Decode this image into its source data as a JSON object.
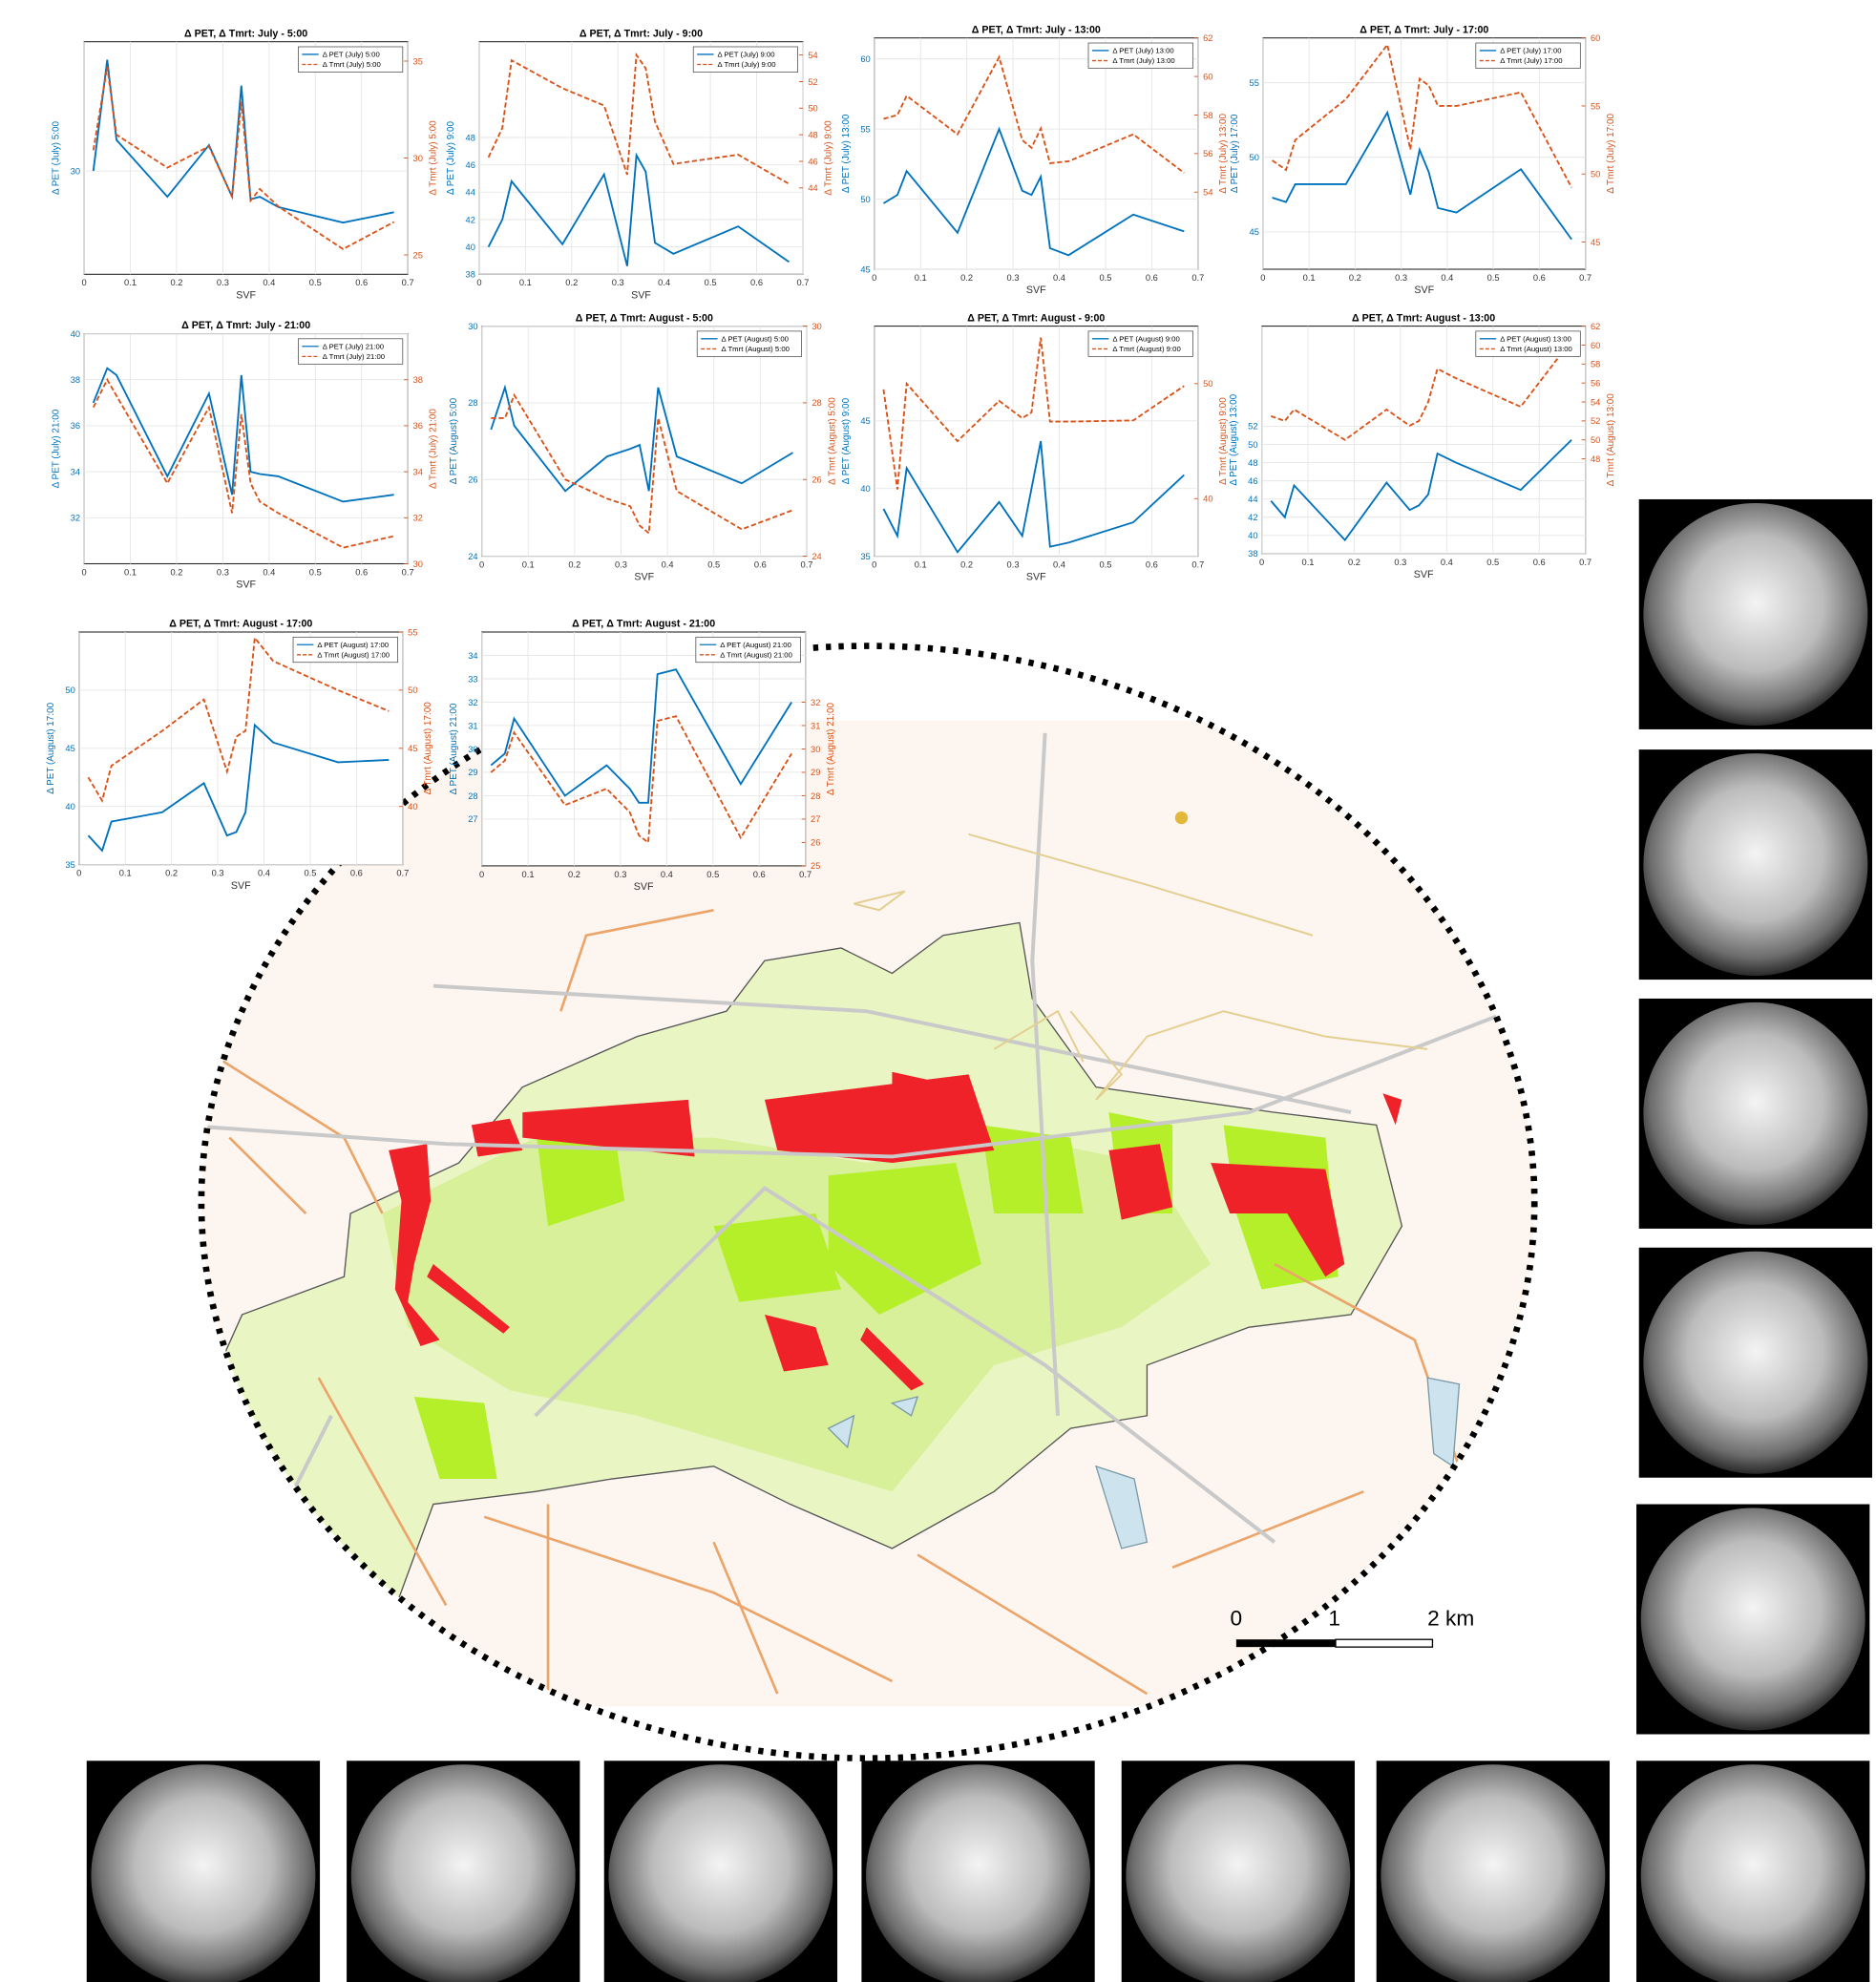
{
  "chart_data": [
    {
      "type": "line",
      "title": "Δ PET, Δ Tmrt: July - 5:00",
      "xlabel": "SVF",
      "ylabel": "Δ PET (July) 5:00",
      "y2label": "Δ Tmrt (July) 5:00",
      "x": [
        0.02,
        0.05,
        0.07,
        0.18,
        0.27,
        0.32,
        0.34,
        0.36,
        0.38,
        0.42,
        0.56,
        0.67
      ],
      "xlim": [
        0,
        0.7
      ],
      "xticks": [
        0,
        0.1,
        0.2,
        0.3,
        0.4,
        0.5,
        0.6,
        0.7
      ],
      "ylim": [
        26,
        35
      ],
      "yticks": [
        30
      ],
      "y2lim": [
        24,
        36
      ],
      "y2ticks": [
        25,
        30,
        35
      ],
      "grid": true,
      "series": [
        {
          "name": "Δ PET (July) 5:00",
          "color": "#0072bd",
          "values": [
            30,
            34.3,
            31.2,
            29,
            31,
            29,
            33.3,
            28.9,
            29,
            28.6,
            28,
            28.4
          ]
        },
        {
          "name": "Δ Tmrt (July) 5:00",
          "color": "#d95319",
          "axis": "y2",
          "values": [
            30.4,
            34.7,
            31.2,
            29.5,
            30.6,
            28,
            32.9,
            27.8,
            28.4,
            27.5,
            25.3,
            26.7
          ]
        }
      ]
    },
    {
      "type": "line",
      "title": "Δ PET, Δ Tmrt: July - 9:00",
      "xlabel": "SVF",
      "ylabel": "Δ PET (July) 9:00",
      "y2label": "Δ Tmrt (July) 9:00",
      "x": [
        0.02,
        0.05,
        0.07,
        0.18,
        0.27,
        0.32,
        0.34,
        0.36,
        0.38,
        0.42,
        0.56,
        0.67
      ],
      "xlim": [
        0,
        0.7
      ],
      "xticks": [
        0,
        0.1,
        0.2,
        0.3,
        0.4,
        0.5,
        0.6,
        0.7
      ],
      "ylim": [
        38,
        55
      ],
      "yticks": [
        38,
        40,
        42,
        44,
        46,
        48
      ],
      "y2lim": [
        37.5,
        55
      ],
      "y2ticks": [
        44,
        46,
        48,
        50,
        52,
        54
      ],
      "grid": true,
      "series": [
        {
          "name": "Δ PET (July) 9:00",
          "color": "#0072bd",
          "values": [
            40,
            42,
            44.8,
            40.2,
            45.3,
            38.6,
            46.7,
            45.5,
            40.3,
            39.5,
            41.5,
            38.9
          ]
        },
        {
          "name": "Δ Tmrt (July) 9:00",
          "color": "#d95319",
          "axis": "y2",
          "values": [
            46.3,
            48.5,
            53.6,
            51.5,
            50.2,
            45,
            54,
            53,
            49,
            45.8,
            46.5,
            44.3
          ]
        }
      ]
    },
    {
      "type": "line",
      "title": "Δ PET, Δ Tmrt: July - 13:00",
      "xlabel": "SVF",
      "ylabel": "Δ PET (July) 13:00",
      "y2label": "Δ Tmrt (July) 13:00",
      "x": [
        0.02,
        0.05,
        0.07,
        0.18,
        0.27,
        0.32,
        0.34,
        0.36,
        0.38,
        0.42,
        0.56,
        0.67
      ],
      "xlim": [
        0,
        0.7
      ],
      "xticks": [
        0,
        0.1,
        0.2,
        0.3,
        0.4,
        0.5,
        0.6,
        0.7
      ],
      "ylim": [
        45,
        61.5
      ],
      "yticks": [
        45,
        50,
        55,
        60
      ],
      "y2lim": [
        50,
        62
      ],
      "y2ticks": [
        54,
        56,
        58,
        60,
        62
      ],
      "grid": true,
      "series": [
        {
          "name": "Δ PET (July) 13:00",
          "color": "#0072bd",
          "values": [
            49.7,
            50.3,
            52,
            47.6,
            55,
            50.6,
            50.3,
            51.6,
            46.5,
            46,
            48.9,
            47.7
          ]
        },
        {
          "name": "Δ Tmrt (July) 13:00",
          "color": "#d95319",
          "axis": "y2",
          "values": [
            57.8,
            58,
            59,
            57,
            61,
            56.7,
            56.3,
            57.3,
            55.5,
            55.6,
            57,
            55
          ]
        }
      ]
    },
    {
      "type": "line",
      "title": "Δ PET, Δ Tmrt: July - 17:00",
      "xlabel": "SVF",
      "ylabel": "Δ PET (July) 17:00",
      "y2label": "Δ Tmrt (July) 17:00",
      "x": [
        0.02,
        0.05,
        0.07,
        0.18,
        0.27,
        0.32,
        0.34,
        0.36,
        0.38,
        0.42,
        0.56,
        0.67
      ],
      "xlim": [
        0,
        0.7
      ],
      "xticks": [
        0,
        0.1,
        0.2,
        0.3,
        0.4,
        0.5,
        0.6,
        0.7
      ],
      "ylim": [
        42.5,
        58
      ],
      "yticks": [
        45,
        50,
        55
      ],
      "y2lim": [
        43,
        60
      ],
      "y2ticks": [
        45,
        50,
        55,
        60
      ],
      "grid": true,
      "series": [
        {
          "name": "Δ PET (July) 17:00",
          "color": "#0072bd",
          "values": [
            47.3,
            47,
            48.2,
            48.2,
            53,
            47.5,
            50.5,
            49,
            46.6,
            46.3,
            49.2,
            44.5
          ]
        },
        {
          "name": "Δ Tmrt (July) 17:00",
          "color": "#d95319",
          "axis": "y2",
          "values": [
            51,
            50.3,
            52.5,
            55.5,
            59.5,
            51.8,
            57,
            56.5,
            55,
            55,
            56,
            49
          ]
        }
      ]
    },
    {
      "type": "line",
      "title": "Δ PET, Δ Tmrt: July - 21:00",
      "xlabel": "SVF",
      "ylabel": "Δ PET (July) 21:00",
      "y2label": "Δ Tmrt (July) 21:00",
      "x": [
        0.02,
        0.05,
        0.07,
        0.18,
        0.27,
        0.32,
        0.34,
        0.36,
        0.38,
        0.42,
        0.56,
        0.67
      ],
      "xlim": [
        0,
        0.7
      ],
      "xticks": [
        0,
        0.1,
        0.2,
        0.3,
        0.4,
        0.5,
        0.6,
        0.7
      ],
      "ylim": [
        30,
        40
      ],
      "yticks": [
        32,
        34,
        36,
        38,
        40
      ],
      "y2lim": [
        30,
        40
      ],
      "y2ticks": [
        30,
        32,
        34,
        36,
        38
      ],
      "grid": true,
      "series": [
        {
          "name": "Δ PET (July) 21:00",
          "color": "#0072bd",
          "values": [
            37,
            38.5,
            38.2,
            33.8,
            37.4,
            33,
            38.2,
            34,
            33.9,
            33.8,
            32.7,
            33
          ]
        },
        {
          "name": "Δ Tmrt (July) 21:00",
          "color": "#d95319",
          "axis": "y2",
          "values": [
            36.8,
            38,
            37.3,
            33.5,
            36.8,
            32.2,
            36.5,
            33.5,
            32.7,
            32.2,
            30.7,
            31.2
          ]
        }
      ]
    },
    {
      "type": "line",
      "title": "Δ PET, Δ Tmrt: August - 5:00",
      "xlabel": "SVF",
      "ylabel": "Δ PET (August) 5:00",
      "y2label": "Δ Tmrt (August) 5:00",
      "x": [
        0.02,
        0.05,
        0.07,
        0.18,
        0.27,
        0.32,
        0.34,
        0.36,
        0.38,
        0.42,
        0.56,
        0.67
      ],
      "xlim": [
        0,
        0.7
      ],
      "xticks": [
        0,
        0.1,
        0.2,
        0.3,
        0.4,
        0.5,
        0.6,
        0.7
      ],
      "ylim": [
        24,
        30
      ],
      "yticks": [
        24,
        26,
        28,
        30
      ],
      "y2lim": [
        24,
        30
      ],
      "y2ticks": [
        24,
        26,
        28,
        30
      ],
      "grid": true,
      "series": [
        {
          "name": "Δ PET (August) 5:00",
          "color": "#0072bd",
          "values": [
            27.3,
            28.4,
            27.4,
            25.7,
            26.6,
            26.8,
            26.9,
            25.7,
            28.4,
            26.6,
            25.9,
            26.7
          ]
        },
        {
          "name": "Δ Tmrt (August) 5:00",
          "color": "#d95319",
          "axis": "y2",
          "values": [
            27.6,
            27.6,
            28.2,
            26,
            25.5,
            25.3,
            24.8,
            24.6,
            27.6,
            25.7,
            24.7,
            25.2
          ]
        }
      ]
    },
    {
      "type": "line",
      "title": "Δ PET, Δ Tmrt: August - 9:00",
      "xlabel": "SVF",
      "ylabel": "Δ PET (August) 9:00",
      "y2label": "Δ Tmrt (August) 9:00",
      "x": [
        0.02,
        0.05,
        0.07,
        0.18,
        0.27,
        0.32,
        0.34,
        0.36,
        0.38,
        0.42,
        0.56,
        0.67
      ],
      "xlim": [
        0,
        0.7
      ],
      "xticks": [
        0,
        0.1,
        0.2,
        0.3,
        0.4,
        0.5,
        0.6,
        0.7
      ],
      "ylim": [
        35,
        52
      ],
      "yticks": [
        35,
        40,
        45
      ],
      "y2lim": [
        35,
        55
      ],
      "y2ticks": [
        40,
        50
      ],
      "grid": true,
      "series": [
        {
          "name": "Δ PET (August) 9:00",
          "color": "#0072bd",
          "values": [
            38.5,
            36.5,
            41.5,
            35.3,
            39,
            36.5,
            40,
            43.5,
            35.7,
            36,
            37.5,
            41
          ]
        },
        {
          "name": "Δ Tmrt (August) 9:00",
          "color": "#d95319",
          "axis": "y2",
          "values": [
            49.5,
            40.8,
            50,
            45,
            48.5,
            47,
            47.5,
            54,
            46.7,
            46.7,
            46.8,
            49.8
          ]
        }
      ]
    },
    {
      "type": "line",
      "title": "Δ PET, Δ Tmrt: August - 13:00",
      "xlabel": "SVF",
      "ylabel": "Δ PET (August) 13:00",
      "y2label": "Δ Tmrt (August) 13:00",
      "x": [
        0.02,
        0.05,
        0.07,
        0.18,
        0.27,
        0.32,
        0.34,
        0.36,
        0.38,
        0.42,
        0.56,
        0.67
      ],
      "xlim": [
        0,
        0.7
      ],
      "xticks": [
        0,
        0.1,
        0.2,
        0.3,
        0.4,
        0.5,
        0.6,
        0.7
      ],
      "ylim": [
        38,
        63
      ],
      "yticks": [
        38,
        40,
        42,
        44,
        46,
        48,
        50,
        52
      ],
      "y2lim": [
        38,
        62
      ],
      "y2ticks": [
        48,
        50,
        52,
        54,
        56,
        58,
        60,
        62
      ],
      "grid": true,
      "series": [
        {
          "name": "Δ PET (August) 13:00",
          "color": "#0072bd",
          "values": [
            43.8,
            42,
            45.5,
            39.5,
            45.8,
            42.8,
            43.3,
            44.5,
            49,
            48,
            45,
            50.5
          ]
        },
        {
          "name": "Δ Tmrt (August) 13:00",
          "color": "#d95319",
          "axis": "y2",
          "values": [
            52.5,
            52,
            53.2,
            50,
            53.2,
            51.5,
            52,
            54,
            57.5,
            56.5,
            53.5,
            60.5
          ]
        }
      ]
    },
    {
      "type": "line",
      "title": "Δ PET, Δ Tmrt: August - 17:00",
      "xlabel": "SVF",
      "ylabel": "Δ PET (August) 17:00",
      "y2label": "Δ Tmrt (August) 17:00",
      "x": [
        0.02,
        0.05,
        0.07,
        0.18,
        0.27,
        0.32,
        0.34,
        0.36,
        0.38,
        0.42,
        0.56,
        0.67
      ],
      "xlim": [
        0,
        0.7
      ],
      "xticks": [
        0,
        0.1,
        0.2,
        0.3,
        0.4,
        0.5,
        0.6,
        0.7
      ],
      "ylim": [
        35,
        55
      ],
      "yticks": [
        35,
        40,
        45,
        50
      ],
      "y2lim": [
        35,
        55
      ],
      "y2ticks": [
        40,
        45,
        50,
        55
      ],
      "grid": true,
      "series": [
        {
          "name": "Δ PET (August) 17:00",
          "color": "#0072bd",
          "values": [
            37.5,
            36.2,
            38.7,
            39.5,
            42,
            37.5,
            37.8,
            39.5,
            47,
            45.5,
            43.8,
            44
          ]
        },
        {
          "name": "Δ Tmrt (August) 17:00",
          "color": "#d95319",
          "axis": "y2",
          "values": [
            42.5,
            40.5,
            43.5,
            46.5,
            49.2,
            43,
            46,
            46.5,
            54.5,
            52.5,
            50,
            48.2
          ]
        }
      ]
    },
    {
      "type": "line",
      "title": "Δ PET, Δ Tmrt: August - 21:00",
      "xlabel": "SVF",
      "ylabel": "Δ PET (August) 21:00",
      "y2label": "Δ Tmrt (August) 21:00",
      "x": [
        0.02,
        0.05,
        0.07,
        0.18,
        0.27,
        0.32,
        0.34,
        0.36,
        0.38,
        0.42,
        0.56,
        0.67
      ],
      "xlim": [
        0,
        0.7
      ],
      "xticks": [
        0,
        0.1,
        0.2,
        0.3,
        0.4,
        0.5,
        0.6,
        0.7
      ],
      "ylim": [
        25,
        35
      ],
      "yticks": [
        27,
        28,
        29,
        30,
        31,
        32,
        33,
        34
      ],
      "y2lim": [
        25,
        35
      ],
      "y2ticks": [
        25,
        26,
        27,
        28,
        29,
        30,
        31,
        32
      ],
      "grid": true,
      "series": [
        {
          "name": "Δ PET (August) 21:00",
          "color": "#0072bd",
          "values": [
            29.3,
            29.8,
            31.3,
            28,
            29.3,
            28.3,
            27.7,
            27.7,
            33.2,
            33.4,
            28.5,
            32
          ]
        },
        {
          "name": "Δ Tmrt (August) 21:00",
          "color": "#d95319",
          "axis": "y2",
          "values": [
            29,
            29.5,
            30.7,
            27.6,
            28.3,
            27.3,
            26.3,
            26,
            31.2,
            31.4,
            26.2,
            29.8
          ]
        }
      ]
    }
  ],
  "map": {
    "scale_labels": [
      "0",
      "1",
      "2 km"
    ]
  }
}
